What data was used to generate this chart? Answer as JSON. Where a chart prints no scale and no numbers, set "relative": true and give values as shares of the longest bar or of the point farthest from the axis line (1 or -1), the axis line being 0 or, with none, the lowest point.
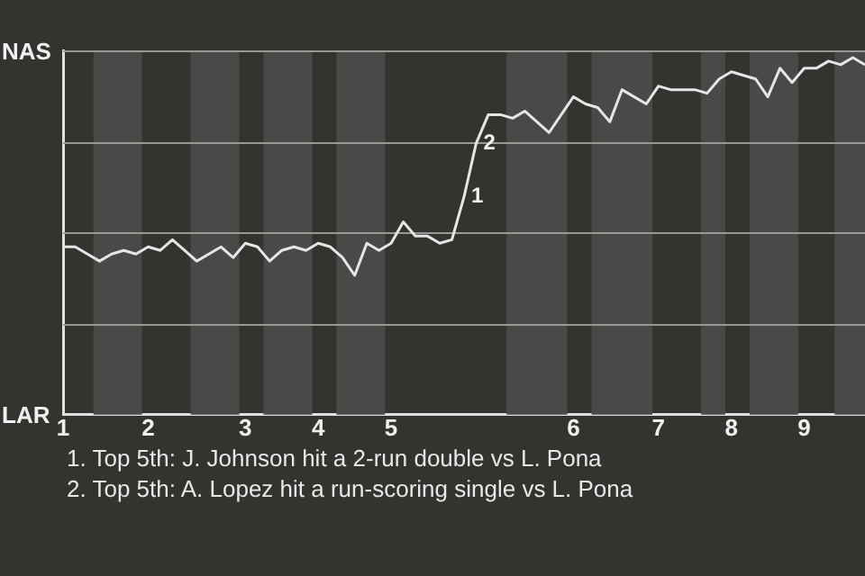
{
  "chart_data": {
    "type": "line",
    "relative": true,
    "categories": [
      "1",
      null,
      null,
      null,
      null,
      null,
      null,
      "2",
      null,
      null,
      null,
      null,
      null,
      null,
      null,
      "3",
      null,
      null,
      null,
      null,
      null,
      "4",
      null,
      null,
      null,
      null,
      null,
      "5",
      null,
      null,
      null,
      null,
      null,
      null,
      null,
      null,
      null,
      null,
      null,
      null,
      null,
      null,
      "6",
      null,
      null,
      null,
      null,
      null,
      null,
      "7",
      null,
      null,
      null,
      null,
      null,
      "8",
      null,
      null,
      null,
      null,
      null,
      "9",
      null,
      null,
      null,
      null,
      null
    ],
    "grid": "y",
    "legend": false,
    "marker": "none",
    "line_style": "solid",
    "series": [
      {
        "color": "#e6e6e6",
        "values": [
          0.47,
          0.47,
          0.45,
          0.43,
          0.45,
          0.46,
          0.45,
          0.47,
          0.46,
          0.49,
          0.46,
          0.43,
          0.45,
          0.47,
          0.44,
          0.48,
          0.47,
          0.43,
          0.46,
          0.47,
          0.46,
          0.48,
          0.47,
          0.44,
          0.39,
          0.48,
          0.46,
          0.48,
          0.54,
          0.5,
          0.5,
          0.48,
          0.49,
          0.61,
          0.76,
          0.84,
          0.84,
          0.83,
          0.85,
          0.82,
          0.79,
          0.84,
          0.89,
          0.87,
          0.86,
          0.82,
          0.91,
          0.89,
          0.87,
          0.92,
          0.91,
          0.91,
          0.91,
          0.9,
          0.94,
          0.96,
          0.95,
          0.94,
          0.89,
          0.97,
          0.93,
          0.97,
          0.97,
          0.99,
          0.98,
          1,
          0.98
        ]
      }
    ],
    "annotations": [
      "NAS",
      "LAR",
      "1",
      "2",
      "1. Top 5th: J. Johnson hit a 2-run double vs L. Pona",
      "2. Top 5th: A. Lopez hit a run-scoring single vs L. Pona"
    ]
  }
}
